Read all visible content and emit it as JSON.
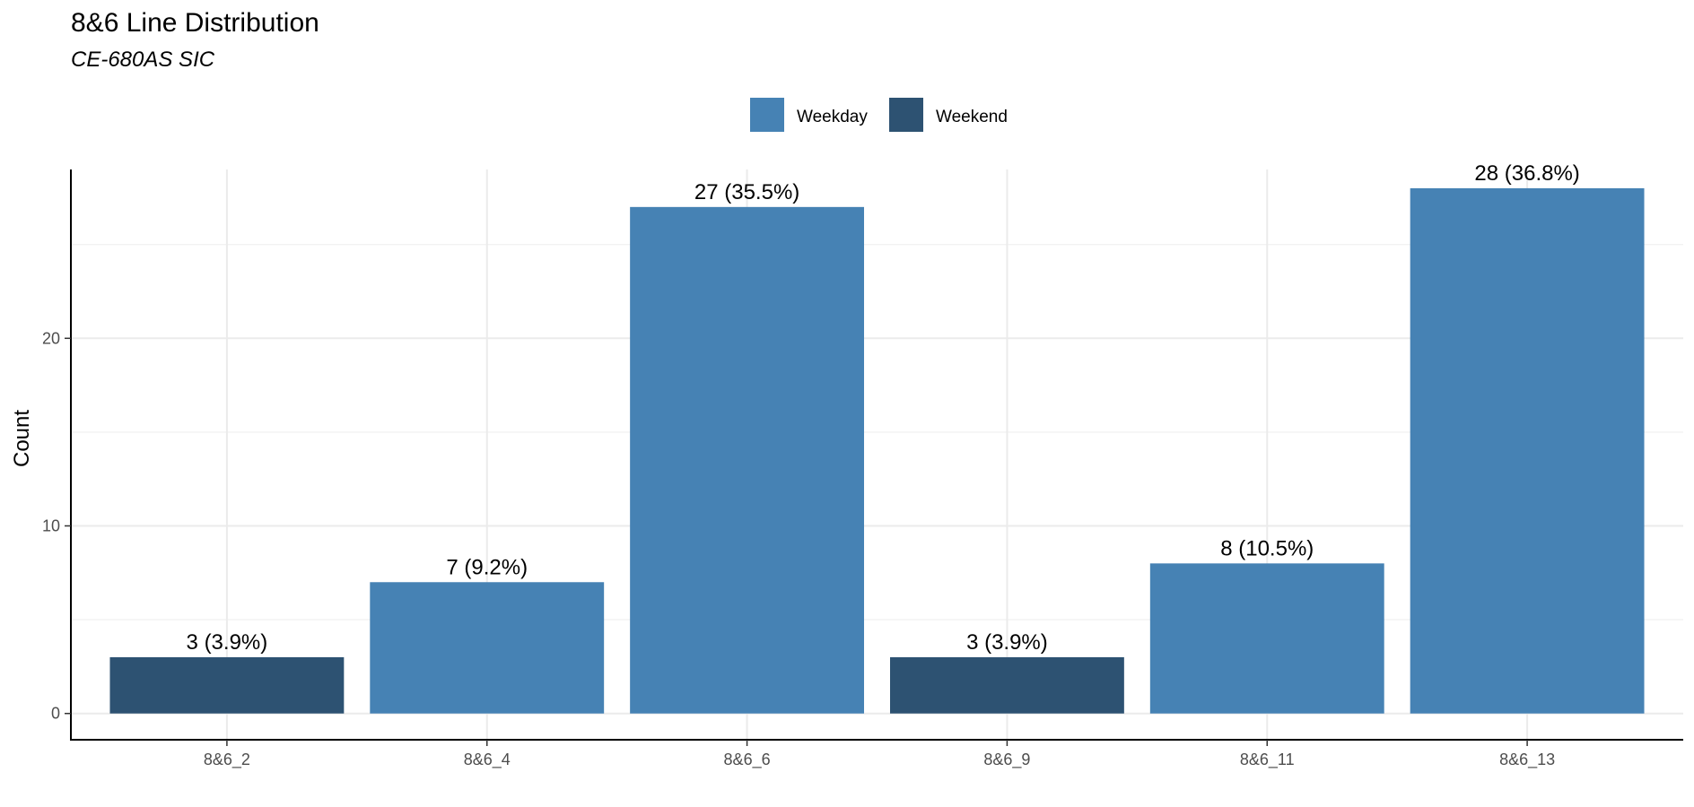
{
  "chart_data": {
    "type": "bar",
    "title": "8&6 Line Distribution",
    "subtitle": "CE-680AS SIC",
    "xlabel": "",
    "ylabel": "Count",
    "ylim": [
      -1.4,
      29.0
    ],
    "y_ticks": [
      0,
      10,
      20
    ],
    "categories": [
      "8&6_2",
      "8&6_4",
      "8&6_6",
      "8&6_9",
      "8&6_11",
      "8&6_13"
    ],
    "values": [
      3,
      7,
      27,
      3,
      8,
      28
    ],
    "groups": [
      "Weekend",
      "Weekday",
      "Weekday",
      "Weekend",
      "Weekday",
      "Weekday"
    ],
    "data_labels": [
      "3 (3.9%)",
      "7 (9.2%)",
      "27 (35.5%)",
      "3 (3.9%)",
      "8 (10.5%)",
      "28 (36.8%)"
    ],
    "legend": {
      "position": "top",
      "entries": [
        {
          "name": "Weekday",
          "color": "#4682b4"
        },
        {
          "name": "Weekend",
          "color": "#2d5272"
        }
      ]
    },
    "grid": true
  }
}
